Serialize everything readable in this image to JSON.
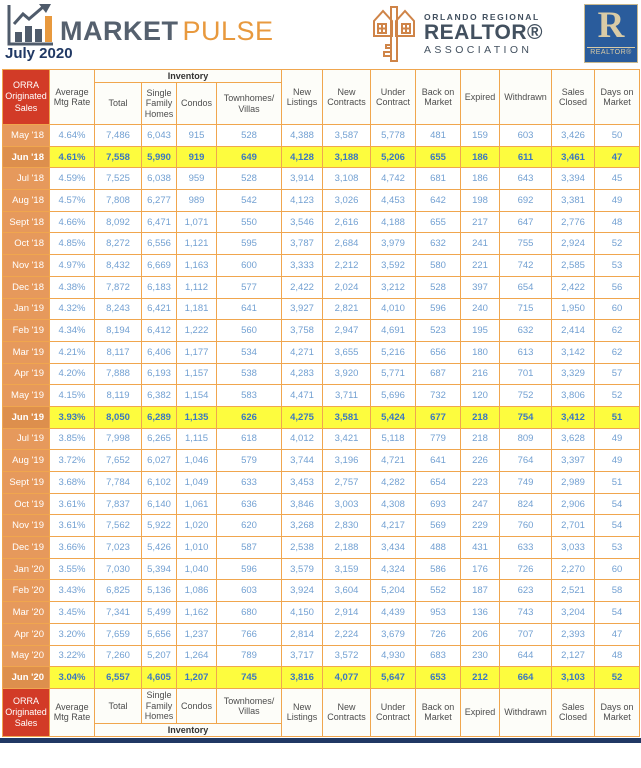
{
  "header": {
    "brand": {
      "market": "MARKET",
      "pulse": "PULSE",
      "date": "July 2020"
    },
    "orra_logo": {
      "line1": "ORLANDO REGIONAL",
      "line2": "REALTOR®",
      "line3": "ASSOCIATION"
    },
    "realtor_logo": {
      "r": "R",
      "label": "REALTOR®"
    }
  },
  "table": {
    "corner": "ORRA Originated Sales",
    "inventory": "Inventory",
    "avg_col": "Average Mtg Rate",
    "inventory_cols": [
      "Total",
      "Single Family Homes",
      "Condos",
      "Townhomes/ Villas"
    ],
    "right_cols": [
      "New Listings",
      "New Contracts",
      "Under Contract",
      "Back on Market",
      "Expired",
      "Withdrawn",
      "Sales Closed",
      "Days on Market"
    ],
    "rows": [
      {
        "month": "May '18",
        "hl": false,
        "v": [
          "4.64%",
          "7,486",
          "6,043",
          "915",
          "528",
          "4,388",
          "3,587",
          "5,778",
          "481",
          "159",
          "603",
          "3,426",
          "50"
        ]
      },
      {
        "month": "Jun '18",
        "hl": true,
        "v": [
          "4.61%",
          "7,558",
          "5,990",
          "919",
          "649",
          "4,128",
          "3,188",
          "5,206",
          "655",
          "186",
          "611",
          "3,461",
          "47"
        ]
      },
      {
        "month": "Jul '18",
        "hl": false,
        "v": [
          "4.59%",
          "7,525",
          "6,038",
          "959",
          "528",
          "3,914",
          "3,108",
          "4,742",
          "681",
          "186",
          "643",
          "3,394",
          "45"
        ]
      },
      {
        "month": "Aug '18",
        "hl": false,
        "v": [
          "4.57%",
          "7,808",
          "6,277",
          "989",
          "542",
          "4,123",
          "3,026",
          "4,453",
          "642",
          "198",
          "692",
          "3,381",
          "49"
        ]
      },
      {
        "month": "Sept '18",
        "hl": false,
        "v": [
          "4.66%",
          "8,092",
          "6,471",
          "1,071",
          "550",
          "3,546",
          "2,616",
          "4,188",
          "655",
          "217",
          "647",
          "2,776",
          "48"
        ]
      },
      {
        "month": "Oct '18",
        "hl": false,
        "v": [
          "4.85%",
          "8,272",
          "6,556",
          "1,121",
          "595",
          "3,787",
          "2,684",
          "3,979",
          "632",
          "241",
          "755",
          "2,924",
          "52"
        ]
      },
      {
        "month": "Nov '18",
        "hl": false,
        "v": [
          "4.97%",
          "8,432",
          "6,669",
          "1,163",
          "600",
          "3,333",
          "2,212",
          "3,592",
          "580",
          "221",
          "742",
          "2,585",
          "53"
        ]
      },
      {
        "month": "Dec '18",
        "hl": false,
        "v": [
          "4.38%",
          "7,872",
          "6,183",
          "1,112",
          "577",
          "2,422",
          "2,024",
          "3,212",
          "528",
          "397",
          "654",
          "2,422",
          "56"
        ]
      },
      {
        "month": "Jan '19",
        "hl": false,
        "v": [
          "4.32%",
          "8,243",
          "6,421",
          "1,181",
          "641",
          "3,927",
          "2,821",
          "4,010",
          "596",
          "240",
          "715",
          "1,950",
          "60"
        ]
      },
      {
        "month": "Feb '19",
        "hl": false,
        "v": [
          "4.34%",
          "8,194",
          "6,412",
          "1,222",
          "560",
          "3,758",
          "2,947",
          "4,691",
          "523",
          "195",
          "632",
          "2,414",
          "62"
        ]
      },
      {
        "month": "Mar '19",
        "hl": false,
        "v": [
          "4.21%",
          "8,117",
          "6,406",
          "1,177",
          "534",
          "4,271",
          "3,655",
          "5,216",
          "656",
          "180",
          "613",
          "3,142",
          "62"
        ]
      },
      {
        "month": "Apr '19",
        "hl": false,
        "v": [
          "4.20%",
          "7,888",
          "6,193",
          "1,157",
          "538",
          "4,283",
          "3,920",
          "5,771",
          "687",
          "216",
          "701",
          "3,329",
          "57"
        ]
      },
      {
        "month": "May '19",
        "hl": false,
        "v": [
          "4.15%",
          "8,119",
          "6,382",
          "1,154",
          "583",
          "4,471",
          "3,711",
          "5,696",
          "732",
          "120",
          "752",
          "3,806",
          "52"
        ]
      },
      {
        "month": "Jun '19",
        "hl": true,
        "v": [
          "3.93%",
          "8,050",
          "6,289",
          "1,135",
          "626",
          "4,275",
          "3,581",
          "5,424",
          "677",
          "218",
          "754",
          "3,412",
          "51"
        ]
      },
      {
        "month": "Jul '19",
        "hl": false,
        "v": [
          "3.85%",
          "7,998",
          "6,265",
          "1,115",
          "618",
          "4,012",
          "3,421",
          "5,118",
          "779",
          "218",
          "809",
          "3,628",
          "49"
        ]
      },
      {
        "month": "Aug '19",
        "hl": false,
        "v": [
          "3.72%",
          "7,652",
          "6,027",
          "1,046",
          "579",
          "3,744",
          "3,196",
          "4,721",
          "641",
          "226",
          "764",
          "3,397",
          "49"
        ]
      },
      {
        "month": "Sept '19",
        "hl": false,
        "v": [
          "3.68%",
          "7,784",
          "6,102",
          "1,049",
          "633",
          "3,453",
          "2,757",
          "4,282",
          "654",
          "223",
          "749",
          "2,989",
          "51"
        ]
      },
      {
        "month": "Oct '19",
        "hl": false,
        "v": [
          "3.61%",
          "7,837",
          "6,140",
          "1,061",
          "636",
          "3,846",
          "3,003",
          "4,308",
          "693",
          "247",
          "824",
          "2,906",
          "54"
        ]
      },
      {
        "month": "Nov '19",
        "hl": false,
        "v": [
          "3.61%",
          "7,562",
          "5,922",
          "1,020",
          "620",
          "3,268",
          "2,830",
          "4,217",
          "569",
          "229",
          "760",
          "2,701",
          "54"
        ]
      },
      {
        "month": "Dec '19",
        "hl": false,
        "v": [
          "3.66%",
          "7,023",
          "5,426",
          "1,010",
          "587",
          "2,538",
          "2,188",
          "3,434",
          "488",
          "431",
          "633",
          "3,033",
          "53"
        ]
      },
      {
        "month": "Jan '20",
        "hl": false,
        "v": [
          "3.55%",
          "7,030",
          "5,394",
          "1,040",
          "596",
          "3,579",
          "3,159",
          "4,324",
          "586",
          "176",
          "726",
          "2,270",
          "60"
        ]
      },
      {
        "month": "Feb '20",
        "hl": false,
        "v": [
          "3.43%",
          "6,825",
          "5,136",
          "1,086",
          "603",
          "3,924",
          "3,604",
          "5,204",
          "552",
          "187",
          "623",
          "2,521",
          "58"
        ]
      },
      {
        "month": "Mar '20",
        "hl": false,
        "v": [
          "3.45%",
          "7,341",
          "5,499",
          "1,162",
          "680",
          "4,150",
          "2,914",
          "4,439",
          "953",
          "136",
          "743",
          "3,204",
          "54"
        ]
      },
      {
        "month": "Apr '20",
        "hl": false,
        "v": [
          "3.20%",
          "7,659",
          "5,656",
          "1,237",
          "766",
          "2,814",
          "2,224",
          "3,679",
          "726",
          "206",
          "707",
          "2,393",
          "47"
        ]
      },
      {
        "month": "May '20",
        "hl": false,
        "v": [
          "3.22%",
          "7,260",
          "5,207",
          "1,264",
          "789",
          "3,717",
          "3,572",
          "4,930",
          "683",
          "230",
          "644",
          "2,127",
          "48"
        ]
      },
      {
        "month": "Jun '20",
        "hl": true,
        "v": [
          "3.04%",
          "6,557",
          "4,605",
          "1,207",
          "745",
          "3,816",
          "4,077",
          "5,647",
          "653",
          "212",
          "664",
          "3,103",
          "52"
        ]
      }
    ]
  },
  "colors": {
    "orra_red": "#d23b27",
    "month_orange": "#e6995c",
    "month_orange_dark": "#dd8f4d",
    "border_orange": "#f0a64e",
    "highlight_yellow": "#fdfc3e",
    "data_blue": "#72a0d2",
    "data_blue_bold": "#3c78c2",
    "brand_slate": "#55606e",
    "brand_orange": "#e8993e",
    "orra_slate": "#42505f",
    "realtor_blue": "#2a5c9c",
    "realtor_cream": "#d9cba6",
    "navy": "#203864"
  }
}
